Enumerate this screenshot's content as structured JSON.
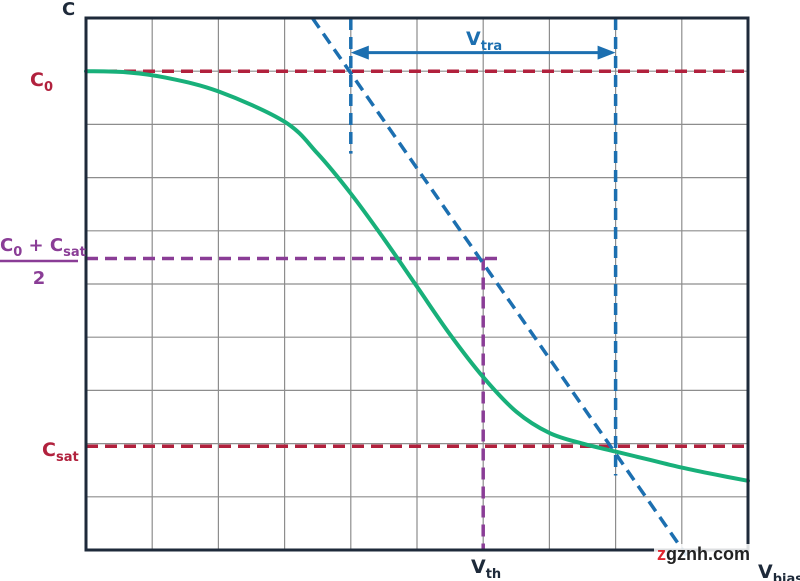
{
  "chart_data": {
    "type": "line",
    "title": "",
    "ylabel": "C",
    "xlabel": {
      "main": "V",
      "sub": "bias"
    },
    "grid": true,
    "xlim": [
      0,
      10
    ],
    "ylim": [
      0,
      9
    ],
    "series": [
      {
        "x": [
          0,
          0.6,
          1.2,
          2.0,
          3.0,
          3.5,
          4.0,
          4.5,
          5.0,
          5.5,
          6.0,
          6.5,
          7.0,
          7.5,
          8.0,
          8.5,
          9.0,
          9.5,
          10.0
        ],
        "y": [
          9.0,
          8.98,
          8.88,
          8.62,
          8.05,
          7.45,
          6.7,
          5.85,
          4.95,
          4.05,
          3.25,
          2.6,
          2.2,
          2.0,
          1.85,
          1.7,
          1.55,
          1.42,
          1.3
        ],
        "color": "#18b07a"
      }
    ],
    "reference_lines": {
      "C0": {
        "y": 9.0,
        "color": "#b1213d"
      },
      "Csat": {
        "y": 1.95,
        "color": "#b1213d"
      },
      "mid": {
        "y": 5.48,
        "xmax": 6.3,
        "color": "#8a3d96"
      },
      "Vth": {
        "x": 6.0,
        "color": "#8a3d96"
      },
      "v_left": {
        "x": 4.0,
        "y_range": [
          7.45,
          10.0
        ],
        "color": "#1c6fb0"
      },
      "v_right": {
        "x": 8.0,
        "y_range": [
          1.4,
          10.0
        ],
        "color": "#1c6fb0"
      },
      "tangent": {
        "from": [
          3.42,
          10.0
        ],
        "to": [
          9.07,
          -0.1
        ],
        "color": "#1c6fb0"
      }
    },
    "annotations": {
      "C0": {
        "main": "C",
        "sub": "0"
      },
      "Csat": {
        "main": "C",
        "sub": "sat"
      },
      "mid_fraction": {
        "num_a_main": "C",
        "num_a_sub": "0",
        "plus": "+",
        "num_b_main": "C",
        "num_b_sub": "sat",
        "denominator": "2"
      },
      "Vth": {
        "main": "V",
        "sub": "th"
      },
      "Vtra": {
        "main": "V",
        "sub": "tra",
        "arrow_y": 9.35,
        "from_x": 4.0,
        "to_x": 8.0
      }
    },
    "colors": {
      "axis": "#1e2a3a",
      "grid": "#8d8d8d",
      "red_label": "#b1213d",
      "purple_label": "#8a3d96",
      "blue_label": "#1c6fb0"
    }
  },
  "watermark": {
    "z": "z",
    "rest": "gznh.com"
  }
}
